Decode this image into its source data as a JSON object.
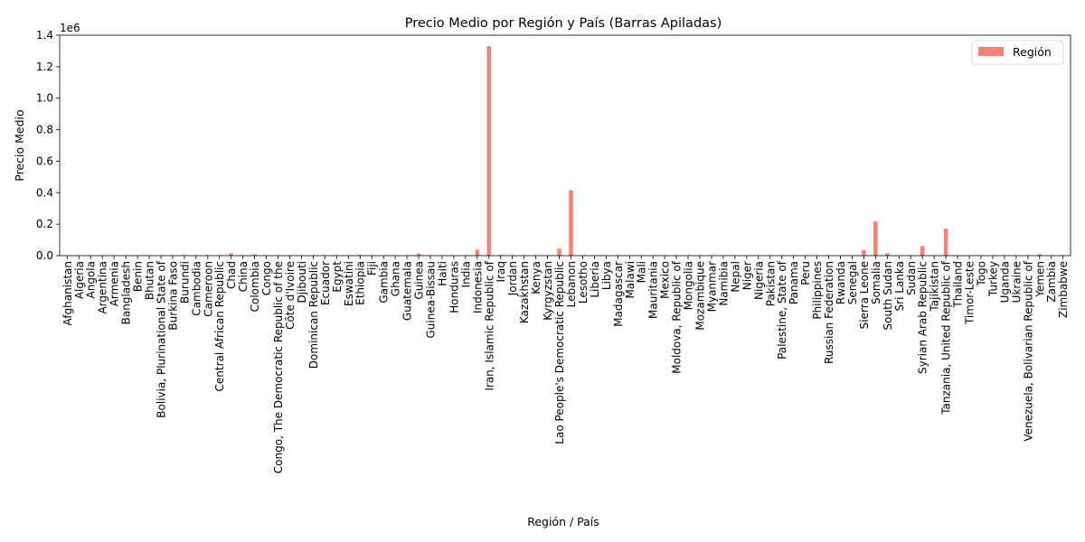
{
  "chart_data": {
    "type": "bar",
    "title": "Precio Medio por Región y País (Barras Apiladas)",
    "xlabel": "Región / País",
    "ylabel": "Precio Medio",
    "y_offset_label": "1e6",
    "ylim": [
      0,
      1400000
    ],
    "yticks": [
      0,
      200000,
      400000,
      600000,
      800000,
      1000000,
      1200000,
      1400000
    ],
    "ytick_labels": [
      "0.0",
      "0.2",
      "0.4",
      "0.6",
      "0.8",
      "1.0",
      "1.2",
      "1.4"
    ],
    "legend_position": "top-right",
    "color": "#fa8072",
    "categories": [
      "Afghanistan",
      "Algeria",
      "Angola",
      "Argentina",
      "Armenia",
      "Bangladesh",
      "Benin",
      "Bhutan",
      "Bolivia, Plurinational State of",
      "Burkina Faso",
      "Burundi",
      "Cambodia",
      "Cameroon",
      "Central African Republic",
      "Chad",
      "China",
      "Colombia",
      "Congo",
      "Congo, The Democratic Republic of the",
      "Côte d'Ivoire",
      "Djibouti",
      "Dominican Republic",
      "Ecuador",
      "Egypt",
      "Eswatini",
      "Ethiopia",
      "Fiji",
      "Gambia",
      "Ghana",
      "Guatemala",
      "Guinea",
      "Guinea-Bissau",
      "Haiti",
      "Honduras",
      "India",
      "Indonesia",
      "Iran, Islamic Republic of",
      "Iraq",
      "Jordan",
      "Kazakhstan",
      "Kenya",
      "Kyrgyzstan",
      "Lao People's Democratic Republic",
      "Lebanon",
      "Lesotho",
      "Liberia",
      "Libya",
      "Madagascar",
      "Malawi",
      "Mali",
      "Mauritania",
      "Mexico",
      "Moldova, Republic of",
      "Mongolia",
      "Mozambique",
      "Myanmar",
      "Namibia",
      "Nepal",
      "Niger",
      "Nigeria",
      "Pakistan",
      "Palestine, State of",
      "Panama",
      "Peru",
      "Philippines",
      "Russian Federation",
      "Rwanda",
      "Senegal",
      "Sierra Leone",
      "Somalia",
      "South Sudan",
      "Sri Lanka",
      "Sudan",
      "Syrian Arab Republic",
      "Tajikistan",
      "Tanzania, United Republic of",
      "Thailand",
      "Timor-Leste",
      "Togo",
      "Turkey",
      "Uganda",
      "Ukraine",
      "Venezuela, Bolivarian Republic of",
      "Yemen",
      "Zambia",
      "Zimbabwe"
    ],
    "series": [
      {
        "name": "Región",
        "values": [
          1000,
          300,
          500,
          100,
          200,
          1500,
          300,
          100,
          100,
          500,
          3000,
          3500,
          4000,
          2000,
          15000,
          100,
          8000,
          1000,
          2500,
          500,
          100,
          100,
          100,
          500,
          300,
          5000,
          100,
          100,
          800,
          100,
          14000,
          600,
          100,
          100,
          100,
          38000,
          1330000,
          4000,
          500,
          300,
          500,
          100,
          45000,
          415000,
          100,
          800,
          1000,
          2500,
          400,
          400,
          300,
          100,
          200,
          3000,
          300,
          1800,
          200,
          100,
          100,
          3000,
          800,
          100,
          100,
          100,
          100,
          100,
          800,
          300,
          35000,
          218000,
          15000,
          300,
          2000,
          62000,
          100,
          172000,
          100,
          200,
          100,
          100,
          2500,
          100,
          3000,
          9000,
          100,
          1000
        ]
      }
    ]
  }
}
